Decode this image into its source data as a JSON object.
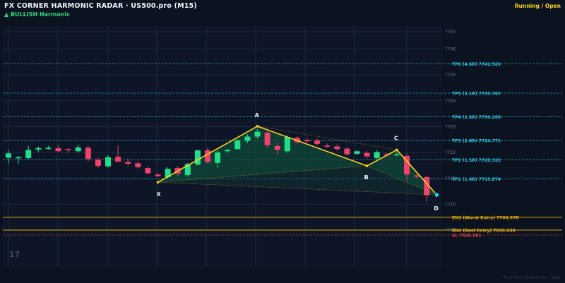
{
  "header": {
    "title": "FX CORNER HARMONIC RADAR  ·  US500.pro (M15)",
    "signal": "▲ BULLISH  Harmonic",
    "status": "Running / Open"
  },
  "footer": {
    "source": "fxcorner.rs/harmonic_radar"
  },
  "watermark": "17",
  "colors": {
    "background": "#0b1220",
    "bull": "#1fe08a",
    "bear": "#f0416c",
    "pattern": "#ffd21a",
    "tp": "#22d3ee",
    "entry": "#eab308",
    "sl": "#ef4444",
    "fill": "#0f4a3a"
  },
  "chart_data": {
    "type": "candlestick",
    "ylim": [
      7704.5,
      7750.5
    ],
    "y_ticks": [
      7704,
      7710,
      7716,
      7722,
      7728,
      7734,
      7740,
      7746,
      7750
    ],
    "candles": [
      [
        7720.8,
        7722.5,
        7719.5,
        7721.8
      ],
      [
        7720.8,
        7721.2,
        7719.4,
        7720.9
      ],
      [
        7720.7,
        7723.6,
        7720.4,
        7722.6
      ],
      [
        7722.7,
        7723.4,
        7722.1,
        7723.0
      ],
      [
        7722.9,
        7723.5,
        7722.6,
        7723.1
      ],
      [
        7723.0,
        7723.7,
        7722.1,
        7722.3
      ],
      [
        7722.8,
        7723.1,
        7721.9,
        7722.6
      ],
      [
        7722.3,
        7723.8,
        7722.0,
        7723.2
      ],
      [
        7723.1,
        7723.6,
        7720.0,
        7720.5
      ],
      [
        7720.3,
        7720.8,
        7718.4,
        7718.9
      ],
      [
        7718.8,
        7721.4,
        7718.5,
        7720.9
      ],
      [
        7721.0,
        7723.6,
        7719.8,
        7719.9
      ],
      [
        7719.8,
        7720.6,
        7719.0,
        7719.4
      ],
      [
        7719.5,
        7719.9,
        7718.3,
        7718.6
      ],
      [
        7718.4,
        7718.8,
        7716.9,
        7717.2
      ],
      [
        7716.9,
        7717.2,
        7716.3,
        7716.5
      ],
      [
        7716.3,
        7718.6,
        7716.0,
        7718.2
      ],
      [
        7718.4,
        7718.9,
        7716.6,
        7717.1
      ],
      [
        7716.8,
        7719.6,
        7716.4,
        7719.3
      ],
      [
        7719.2,
        7722.6,
        7719.0,
        7722.5
      ],
      [
        7722.5,
        7723.1,
        7719.4,
        7719.8
      ],
      [
        7719.6,
        7722.4,
        7718.5,
        7722.0
      ],
      [
        7722.3,
        7722.8,
        7721.9,
        7722.6
      ],
      [
        7722.8,
        7725.0,
        7722.6,
        7724.8
      ],
      [
        7724.7,
        7726.2,
        7724.2,
        7725.7
      ],
      [
        7725.7,
        7727.4,
        7725.2,
        7726.8
      ],
      [
        7726.6,
        7726.9,
        7723.0,
        7723.7
      ],
      [
        7723.5,
        7724.3,
        7721.6,
        7722.6
      ],
      [
        7722.3,
        7726.0,
        7721.9,
        7725.6
      ],
      [
        7725.4,
        7725.8,
        7724.0,
        7724.4
      ],
      [
        7724.9,
        7725.3,
        7724.3,
        7724.6
      ],
      [
        7724.8,
        7725.2,
        7723.6,
        7724.0
      ],
      [
        7723.6,
        7724.1,
        7723.0,
        7723.4
      ],
      [
        7723.4,
        7723.9,
        7722.4,
        7722.8
      ],
      [
        7722.9,
        7723.3,
        7721.2,
        7721.6
      ],
      [
        7721.7,
        7722.5,
        7721.4,
        7722.3
      ],
      [
        7721.9,
        7722.4,
        7720.6,
        7721.1
      ],
      [
        7720.7,
        7722.6,
        7720.2,
        7722.1
      ],
      [
        7721.6,
        7722.0,
        7721.1,
        7721.5
      ],
      [
        7721.6,
        7722.2,
        7721.1,
        7721.6
      ],
      [
        7721.2,
        7721.8,
        7715.6,
        7716.9
      ],
      [
        7716.7,
        7717.0,
        7716.0,
        7716.4
      ],
      [
        7716.3,
        7716.6,
        7710.6,
        7712.1
      ]
    ],
    "pattern": {
      "points": [
        {
          "label": "X",
          "index": 15,
          "price": 7715.1
        },
        {
          "label": "A",
          "index": 25,
          "price": 7728.1
        },
        {
          "label": "B",
          "index": 36,
          "price": 7718.9
        },
        {
          "label": "C",
          "index": 39,
          "price": 7722.6
        },
        {
          "label": "D",
          "index": 43,
          "price": 7712.2
        }
      ]
    },
    "levels": [
      {
        "label": "TP6 (4.6R)  7742.563",
        "price": 7742.563,
        "kind": "tp"
      },
      {
        "label": "TP5 (3.1R)  7735.767",
        "price": 7735.767,
        "kind": "tp"
      },
      {
        "label": "TP4 (2.6R)  7730.269",
        "price": 7730.269,
        "kind": "tp"
      },
      {
        "label": "TP3 (2.0R)  7724.771",
        "price": 7724.771,
        "kind": "tp"
      },
      {
        "label": "TP2 (1.5R)  7720.322",
        "price": 7720.322,
        "kind": "tp"
      },
      {
        "label": "TP1 (1.0R)  7715.874",
        "price": 7715.874,
        "kind": "tp"
      },
      {
        "label": "EN1 (Worst Entry)  7706.978",
        "price": 7706.978,
        "kind": "entry"
      },
      {
        "label": "EN2 (Best Entry)  7699.250",
        "price": 7699.25,
        "kind": "entry"
      },
      {
        "label": "SL  7698.081",
        "price": 7698.081,
        "kind": "sl"
      }
    ]
  }
}
